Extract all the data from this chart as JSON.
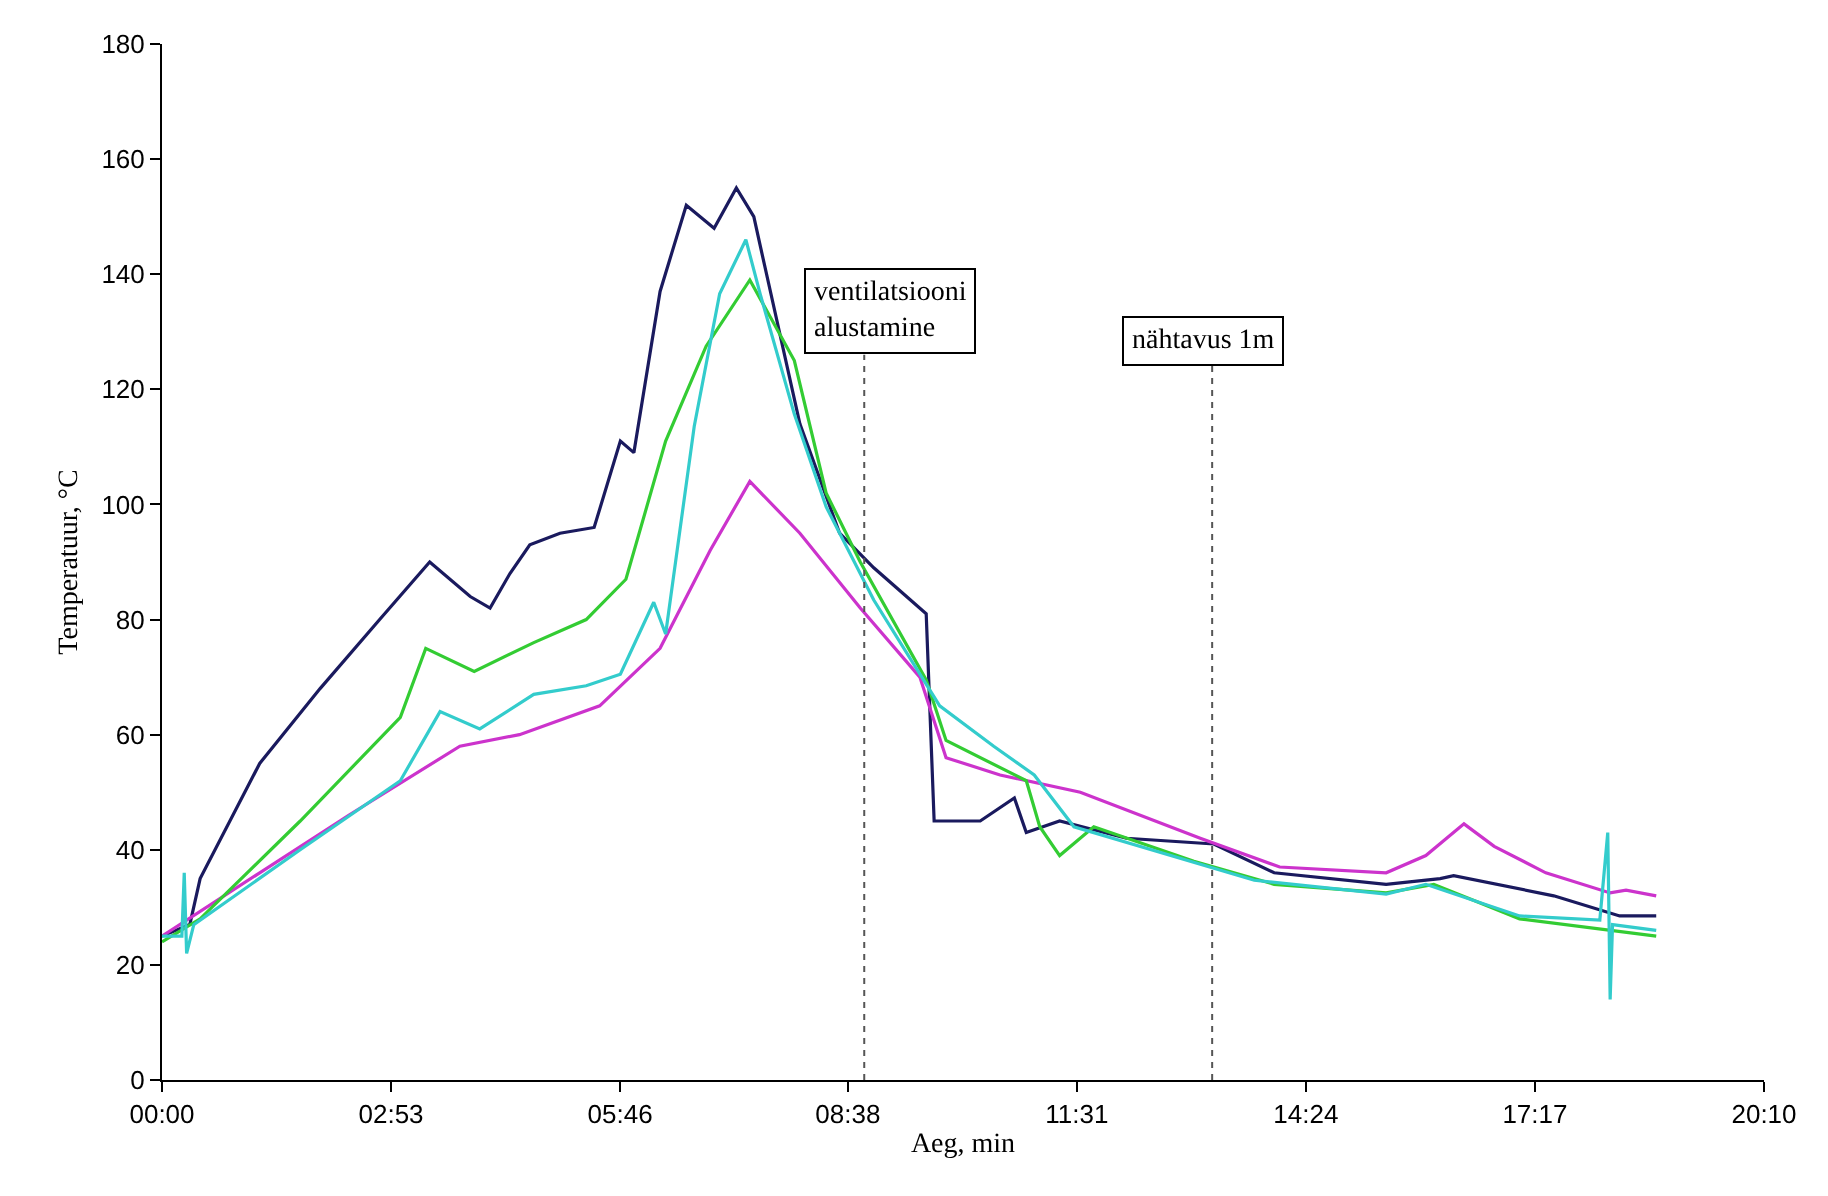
{
  "chart_data": {
    "type": "line",
    "xlabel": "Aeg, min",
    "ylabel": "Temperatuur, °C",
    "xlim": [
      0,
      20.1667
    ],
    "ylim": [
      0,
      180
    ],
    "xticks": [
      {
        "value": 0,
        "label": "00:00"
      },
      {
        "value": 2.8833,
        "label": "02:53"
      },
      {
        "value": 5.7667,
        "label": "05:46"
      },
      {
        "value": 8.6333,
        "label": "08:38"
      },
      {
        "value": 11.5167,
        "label": "11:31"
      },
      {
        "value": 14.4,
        "label": "14:24"
      },
      {
        "value": 17.2833,
        "label": "17:17"
      },
      {
        "value": 20.1667,
        "label": "20:10"
      }
    ],
    "yticks": [
      0,
      20,
      40,
      60,
      80,
      100,
      120,
      140,
      160,
      180
    ],
    "marker": "none",
    "line_style": "solid",
    "ref_lines": [
      {
        "axis": "x",
        "value": 8.84,
        "label": "ventilatsiooni\nalustamine",
        "color": "#555555",
        "line_style": "dotted"
      },
      {
        "axis": "x",
        "value": 13.22,
        "label": "nähtavus 1m",
        "color": "#555555",
        "line_style": "dotted"
      }
    ],
    "series": [
      {
        "color": "#1a1a5e",
        "x": [
          0,
          0.35,
          0.48,
          1.23,
          1.99,
          2.74,
          3.37,
          3.88,
          4.13,
          4.38,
          4.63,
          5.01,
          5.44,
          5.77,
          5.94,
          6.27,
          6.6,
          6.95,
          7.23,
          7.45,
          7.53,
          8.03,
          8.53,
          8.96,
          9.62,
          9.72,
          10.3,
          10.73,
          10.88,
          11.3,
          12.14,
          13.24,
          14.0,
          15.41,
          16.09,
          16.26,
          17.52,
          18.35,
          18.81
        ],
        "values": [
          25,
          27,
          35,
          55,
          68,
          80,
          90,
          84,
          82,
          88,
          93,
          95,
          96,
          111,
          109,
          137,
          152,
          148,
          155,
          150,
          145,
          114,
          95,
          89,
          81,
          45,
          45,
          49,
          43,
          45,
          42,
          41,
          36,
          34,
          35,
          35.5,
          32,
          28.5,
          28.5
        ]
      },
      {
        "color": "#cc33cc",
        "x": [
          0,
          1.23,
          2.35,
          3.75,
          4.5,
          5.51,
          6.27,
          6.9,
          7.4,
          8.03,
          8.79,
          9.54,
          9.87,
          10.55,
          11.56,
          13.07,
          14.07,
          15.41,
          15.91,
          16.39,
          16.77,
          17.42,
          18.23,
          18.43,
          18.81
        ],
        "values": [
          25,
          36,
          46,
          58,
          60,
          65,
          75,
          92,
          104,
          95,
          82,
          70,
          56,
          53,
          50,
          42,
          37,
          36,
          39,
          44.5,
          40.6,
          36,
          32.5,
          33,
          32
        ]
      },
      {
        "color": "#33cc33",
        "x": [
          0,
          0.48,
          1.74,
          3.0,
          3.32,
          3.93,
          4.68,
          5.34,
          5.84,
          6.34,
          6.85,
          7.4,
          7.96,
          8.36,
          8.79,
          9.62,
          9.87,
          10.88,
          11.05,
          11.3,
          11.73,
          12.99,
          14.0,
          15.41,
          16.01,
          17.09,
          18.81
        ],
        "values": [
          24,
          28,
          45,
          63,
          75,
          71,
          76,
          80,
          87,
          111,
          127.5,
          139,
          125,
          102,
          90,
          69.5,
          59,
          52,
          44,
          39,
          44,
          38,
          34,
          32.5,
          34,
          28,
          25
        ]
      },
      {
        "color": "#33cccc",
        "x": [
          0,
          0.25,
          0.28,
          0.31,
          0.4,
          1.74,
          3.0,
          3.5,
          4.0,
          4.68,
          5.34,
          5.77,
          6.19,
          6.34,
          6.7,
          7.02,
          7.35,
          7.53,
          7.96,
          8.36,
          8.96,
          9.79,
          10.47,
          10.98,
          11.48,
          13.75,
          15.41,
          15.91,
          17.09,
          18.1,
          18.2,
          18.23,
          18.26,
          18.81
        ],
        "values": [
          25,
          25,
          36,
          22,
          27,
          40,
          52,
          64,
          61,
          67,
          68.5,
          70.5,
          83,
          77.5,
          113.6,
          136.6,
          146,
          136.6,
          115.7,
          99.6,
          83.4,
          65,
          58,
          53,
          44,
          34.7,
          32.3,
          34,
          28.5,
          27.8,
          43,
          14,
          27,
          26
        ]
      }
    ]
  }
}
